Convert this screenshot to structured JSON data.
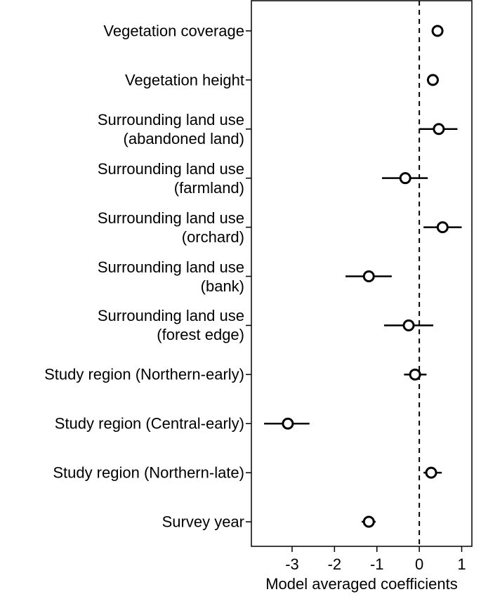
{
  "chart_data": {
    "type": "coefficient",
    "x_label": "Model averaged coefficients",
    "categories": [
      "Vegetation coverage",
      "Vegetation height",
      "Surrounding land use\n(abandoned land)",
      "Surrounding land use\n(farmland)",
      "Surrounding land use\n(orchard)",
      "Surrounding land use\n(bank)",
      "Surrounding land use\n(forest edge)",
      "Study region (Northern-early)",
      "Study region (Central-early)",
      "Study region (Northern-late)",
      "Survey year"
    ],
    "values": [
      0.43,
      0.32,
      0.46,
      -0.33,
      0.55,
      -1.19,
      -0.25,
      -0.1,
      -3.1,
      0.28,
      -1.19
    ],
    "lower": [
      0.35,
      0.26,
      0.0,
      -0.88,
      0.1,
      -1.74,
      -0.83,
      -0.36,
      -3.66,
      0.1,
      -1.36
    ],
    "upper": [
      0.51,
      0.38,
      0.9,
      0.2,
      1.0,
      -0.65,
      0.33,
      0.17,
      -2.59,
      0.53,
      -1.03
    ],
    "reference_line": 0,
    "xlim": [
      -3.96,
      1.24
    ],
    "xticks": [
      -3,
      -2,
      -1,
      0,
      1
    ],
    "color": "#000000"
  }
}
